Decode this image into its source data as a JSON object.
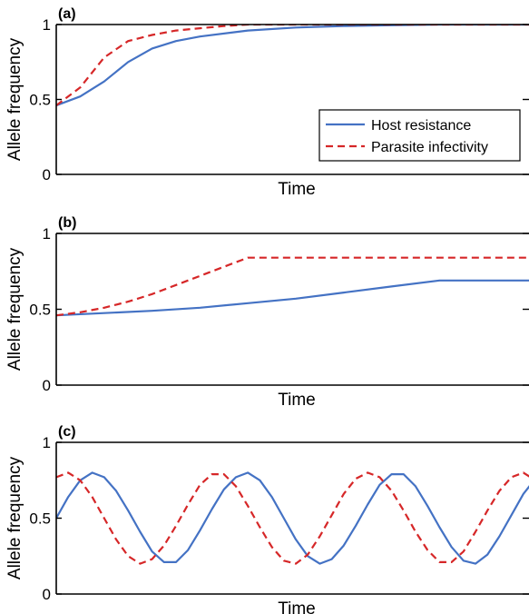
{
  "colors": {
    "host": "#4472c4",
    "parasite": "#d62728",
    "axis": "#000000",
    "background": "#ffffff"
  },
  "legend": {
    "placement": "bottom-right",
    "panel": 0,
    "entries": [
      "Host resistance",
      "Parasite infectivity"
    ]
  },
  "chart_data": [
    {
      "type": "line",
      "panel_label": "(a)",
      "xlabel": "Time",
      "ylabel": "Allele frequency",
      "xlim": [
        0,
        1
      ],
      "ylim": [
        0,
        1
      ],
      "yticks": [
        0,
        0.5,
        1
      ],
      "ytick_labels": [
        "0",
        "0.5",
        "1"
      ],
      "grid": false,
      "series": [
        {
          "name": "Host resistance",
          "style": "solid",
          "x": [
            0,
            0.05,
            0.1,
            0.15,
            0.2,
            0.25,
            0.3,
            0.4,
            0.5,
            0.6,
            0.7,
            0.8,
            1.0
          ],
          "y": [
            0.46,
            0.52,
            0.62,
            0.75,
            0.84,
            0.89,
            0.92,
            0.96,
            0.98,
            0.99,
            0.995,
            1.0,
            1.0
          ]
        },
        {
          "name": "Parasite infectivity",
          "style": "dashed",
          "x": [
            0,
            0.05,
            0.1,
            0.15,
            0.2,
            0.25,
            0.3,
            0.35,
            0.4,
            0.5,
            0.6,
            1.0
          ],
          "y": [
            0.46,
            0.58,
            0.78,
            0.89,
            0.93,
            0.96,
            0.975,
            0.99,
            1.0,
            1.0,
            1.0,
            1.0
          ]
        }
      ]
    },
    {
      "type": "line",
      "panel_label": "(b)",
      "xlabel": "Time",
      "ylabel": "Allele frequency",
      "xlim": [
        0,
        1
      ],
      "ylim": [
        0,
        1
      ],
      "yticks": [
        0,
        0.5,
        1
      ],
      "ytick_labels": [
        "0",
        "0.5",
        "1"
      ],
      "grid": false,
      "series": [
        {
          "name": "Host resistance",
          "style": "solid",
          "x": [
            0,
            0.1,
            0.2,
            0.3,
            0.4,
            0.5,
            0.6,
            0.7,
            0.8,
            0.9,
            1.0
          ],
          "y": [
            0.46,
            0.475,
            0.49,
            0.51,
            0.54,
            0.57,
            0.61,
            0.65,
            0.69,
            0.69,
            0.69
          ]
        },
        {
          "name": "Parasite infectivity",
          "style": "dashed",
          "x": [
            0,
            0.05,
            0.1,
            0.15,
            0.2,
            0.25,
            0.3,
            0.35,
            0.4,
            0.5,
            0.7,
            1.0
          ],
          "y": [
            0.46,
            0.48,
            0.51,
            0.55,
            0.6,
            0.66,
            0.72,
            0.78,
            0.84,
            0.84,
            0.84,
            0.84
          ]
        }
      ]
    },
    {
      "type": "line",
      "panel_label": "(c)",
      "xlabel": "Time",
      "ylabel": "Allele frequency",
      "xlim": [
        0,
        1
      ],
      "ylim": [
        0,
        1
      ],
      "yticks": [
        0,
        0.5,
        1
      ],
      "ytick_labels": [
        "0",
        "0.5",
        "1"
      ],
      "grid": false,
      "series": [
        {
          "name": "Host resistance",
          "style": "solid",
          "x": [
            0.0,
            0.025,
            0.05,
            0.075,
            0.1,
            0.125,
            0.15,
            0.175,
            0.2,
            0.225,
            0.25,
            0.275,
            0.3,
            0.325,
            0.35,
            0.375,
            0.4,
            0.425,
            0.45,
            0.475,
            0.5,
            0.525,
            0.55,
            0.575,
            0.6,
            0.625,
            0.65,
            0.675,
            0.7,
            0.725,
            0.75,
            0.775,
            0.8,
            0.825,
            0.85,
            0.875,
            0.9,
            0.925,
            0.95,
            0.975,
            1.0
          ],
          "y": [
            0.5,
            0.64,
            0.75,
            0.8,
            0.77,
            0.68,
            0.55,
            0.41,
            0.28,
            0.21,
            0.21,
            0.29,
            0.42,
            0.56,
            0.69,
            0.77,
            0.8,
            0.75,
            0.64,
            0.5,
            0.36,
            0.25,
            0.2,
            0.23,
            0.32,
            0.45,
            0.59,
            0.72,
            0.79,
            0.79,
            0.71,
            0.58,
            0.44,
            0.31,
            0.22,
            0.2,
            0.26,
            0.38,
            0.52,
            0.66,
            0.76
          ]
        },
        {
          "name": "Parasite infectivity",
          "style": "dashed",
          "x": [
            0.0,
            0.025,
            0.05,
            0.075,
            0.1,
            0.125,
            0.15,
            0.175,
            0.2,
            0.225,
            0.25,
            0.275,
            0.3,
            0.325,
            0.35,
            0.375,
            0.4,
            0.425,
            0.45,
            0.475,
            0.5,
            0.525,
            0.55,
            0.575,
            0.6,
            0.625,
            0.65,
            0.675,
            0.7,
            0.725,
            0.75,
            0.775,
            0.8,
            0.825,
            0.85,
            0.875,
            0.9,
            0.925,
            0.95,
            0.975,
            1.0
          ],
          "y": [
            0.77,
            0.8,
            0.75,
            0.64,
            0.5,
            0.36,
            0.25,
            0.2,
            0.23,
            0.32,
            0.45,
            0.59,
            0.72,
            0.79,
            0.79,
            0.71,
            0.58,
            0.44,
            0.31,
            0.22,
            0.2,
            0.26,
            0.38,
            0.52,
            0.66,
            0.76,
            0.8,
            0.77,
            0.68,
            0.55,
            0.41,
            0.29,
            0.21,
            0.21,
            0.28,
            0.41,
            0.55,
            0.68,
            0.77,
            0.8,
            0.75
          ]
        }
      ]
    }
  ]
}
